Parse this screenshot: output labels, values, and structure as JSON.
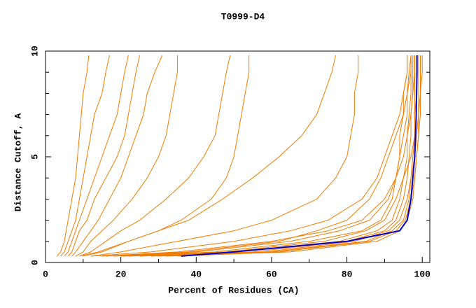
{
  "chart_data": {
    "type": "line",
    "title": "T0999-D4",
    "x_label": "Percent of Residues (CA)",
    "y_label": "Distance Cutoff, A",
    "xlim": [
      0,
      102
    ],
    "ylim": [
      0,
      10
    ],
    "xticks": [
      0,
      20,
      40,
      60,
      80,
      100
    ],
    "yticks": [
      0,
      5,
      10
    ],
    "xminorticks": [
      10,
      30,
      50,
      70,
      90
    ],
    "yminorticks": [
      1,
      2,
      3,
      4,
      6,
      7,
      8,
      9
    ],
    "y": [
      0.3,
      0.5,
      1,
      1.5,
      2,
      3,
      4,
      5,
      6,
      7,
      8,
      9,
      9.8
    ],
    "series": [
      {
        "color": "#f07c00",
        "x": [
          3,
          4,
          5,
          5.5,
          6,
          7,
          8,
          8.5,
          9,
          9.5,
          10,
          11,
          11.5
        ]
      },
      {
        "color": "#f07c00",
        "x": [
          4,
          5,
          6,
          7,
          8,
          9,
          10,
          11,
          12,
          13,
          15,
          16,
          17
        ]
      },
      {
        "color": "#f07c00",
        "x": [
          5,
          6,
          7,
          8,
          9,
          11,
          13,
          15,
          17,
          19,
          20,
          21,
          22
        ]
      },
      {
        "color": "#f07c00",
        "x": [
          6,
          7,
          8,
          9,
          11,
          13,
          16,
          19,
          21,
          22,
          23,
          24,
          25
        ]
      },
      {
        "color": "#f07c00",
        "x": [
          7,
          8,
          10,
          12,
          14,
          17,
          20,
          22,
          24,
          26,
          27,
          29,
          31
        ]
      },
      {
        "color": "#f07c00",
        "x": [
          8,
          10,
          12,
          15,
          18,
          23,
          27,
          30,
          32,
          33,
          34,
          35,
          35
        ]
      },
      {
        "color": "#f07c00",
        "x": [
          9,
          12,
          16,
          20,
          25,
          32,
          38,
          42,
          45,
          46,
          47,
          48,
          49
        ]
      },
      {
        "color": "#f07c00",
        "x": [
          10,
          15,
          22,
          30,
          38,
          47,
          55,
          62,
          68,
          72,
          74,
          76,
          77
        ]
      },
      {
        "color": "#f07c00",
        "x": [
          12,
          20,
          35,
          50,
          60,
          72,
          77,
          80,
          81,
          82,
          82,
          83,
          83
        ]
      },
      {
        "color": "#f07c00",
        "x": [
          9,
          14,
          22,
          30,
          36,
          44,
          48,
          50,
          51,
          52,
          53,
          54,
          54
        ]
      },
      {
        "color": "#f07c00",
        "x": [
          20,
          45,
          70,
          84,
          89,
          92,
          93,
          94,
          94,
          95,
          95,
          96,
          96
        ]
      },
      {
        "color": "#f07c00",
        "x": [
          25,
          55,
          80,
          90,
          93,
          95,
          96,
          96.5,
          97,
          97,
          97.5,
          97.5,
          97.5
        ]
      },
      {
        "color": "#f07c00",
        "x": [
          30,
          60,
          85,
          92,
          95,
          96.5,
          97,
          97.5,
          98,
          98,
          98.5,
          98.5,
          98.5
        ]
      },
      {
        "color": "#f07c00",
        "x": [
          18,
          40,
          65,
          78,
          86,
          91,
          93,
          94,
          95,
          96,
          96,
          96.5,
          97
        ]
      },
      {
        "color": "#f07c00",
        "x": [
          15,
          35,
          60,
          75,
          84,
          90,
          93,
          95,
          96,
          97,
          97.5,
          98,
          98
        ]
      },
      {
        "color": "#f07c00",
        "x": [
          22,
          50,
          78,
          88,
          92,
          94,
          95,
          96,
          96,
          96.5,
          97,
          97,
          97
        ]
      },
      {
        "color": "#f07c00",
        "x": [
          28,
          58,
          82,
          91,
          94,
          96,
          97,
          98,
          98.5,
          99,
          99,
          99,
          99
        ]
      },
      {
        "color": "#f07c00",
        "x": [
          32,
          65,
          88,
          94,
          96,
          97.5,
          98,
          98.5,
          99,
          99,
          99.5,
          99.5,
          99.5
        ]
      },
      {
        "color": "#f07c00",
        "x": [
          12,
          28,
          50,
          65,
          75,
          84,
          88,
          90,
          92,
          94,
          95,
          96,
          96
        ]
      },
      {
        "color": "#f07c00",
        "x": [
          16,
          38,
          62,
          72,
          80,
          86,
          89,
          91,
          93,
          95,
          96,
          97,
          97
        ]
      },
      {
        "color": "#f07c00",
        "x": [
          20,
          48,
          74,
          85,
          90,
          93,
          95,
          97,
          98,
          98,
          98,
          98,
          98
        ]
      },
      {
        "color": "#f07c00",
        "x": [
          35,
          62,
          86,
          93,
          95.5,
          97,
          98,
          98.5,
          99,
          99.5,
          99.5,
          100,
          100
        ]
      },
      {
        "color": "#0000cc",
        "x": [
          36,
          50,
          80,
          94,
          96,
          97,
          97.5,
          98,
          98.2,
          98.4,
          98.5,
          98.6,
          98.6
        ]
      }
    ]
  }
}
